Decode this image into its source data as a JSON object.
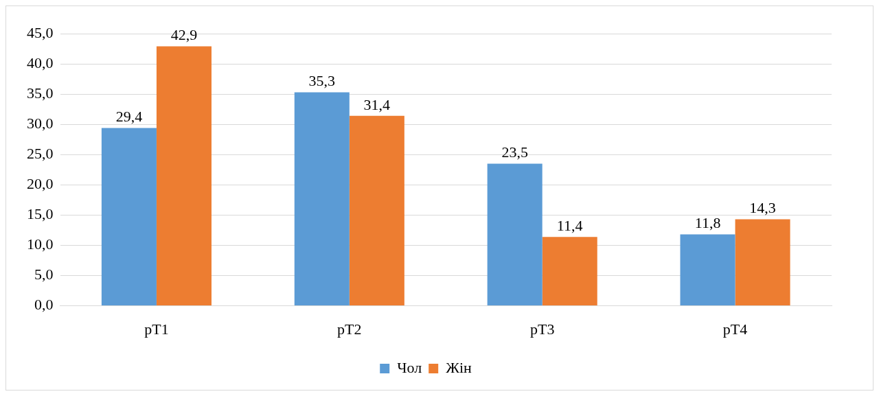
{
  "chart_data": {
    "type": "bar",
    "categories": [
      "рТ1",
      "рТ2",
      "рТ3",
      "рТ4"
    ],
    "series": [
      {
        "name": "Чол",
        "color": "#5b9bd5",
        "values": [
          29.4,
          35.3,
          23.5,
          11.8
        ],
        "value_labels": [
          "29,4",
          "35,3",
          "23,5",
          "11,8"
        ]
      },
      {
        "name": "Жін",
        "color": "#ed7d31",
        "values": [
          42.9,
          31.4,
          11.4,
          14.3
        ],
        "value_labels": [
          "42,9",
          "31,4",
          "11,4",
          "14,3"
        ]
      }
    ],
    "ylim": [
      0,
      45
    ],
    "yticks": [
      {
        "value": 0,
        "label": "0,0"
      },
      {
        "value": 5,
        "label": "5,0"
      },
      {
        "value": 10,
        "label": "10,0"
      },
      {
        "value": 15,
        "label": "15,0"
      },
      {
        "value": 20,
        "label": "20,0"
      },
      {
        "value": 25,
        "label": "25,0"
      },
      {
        "value": 30,
        "label": "30,0"
      },
      {
        "value": 35,
        "label": "35,0"
      },
      {
        "value": 40,
        "label": "40,0"
      },
      {
        "value": 45,
        "label": "45,0"
      }
    ],
    "grid": "y",
    "legend": "bottom"
  }
}
